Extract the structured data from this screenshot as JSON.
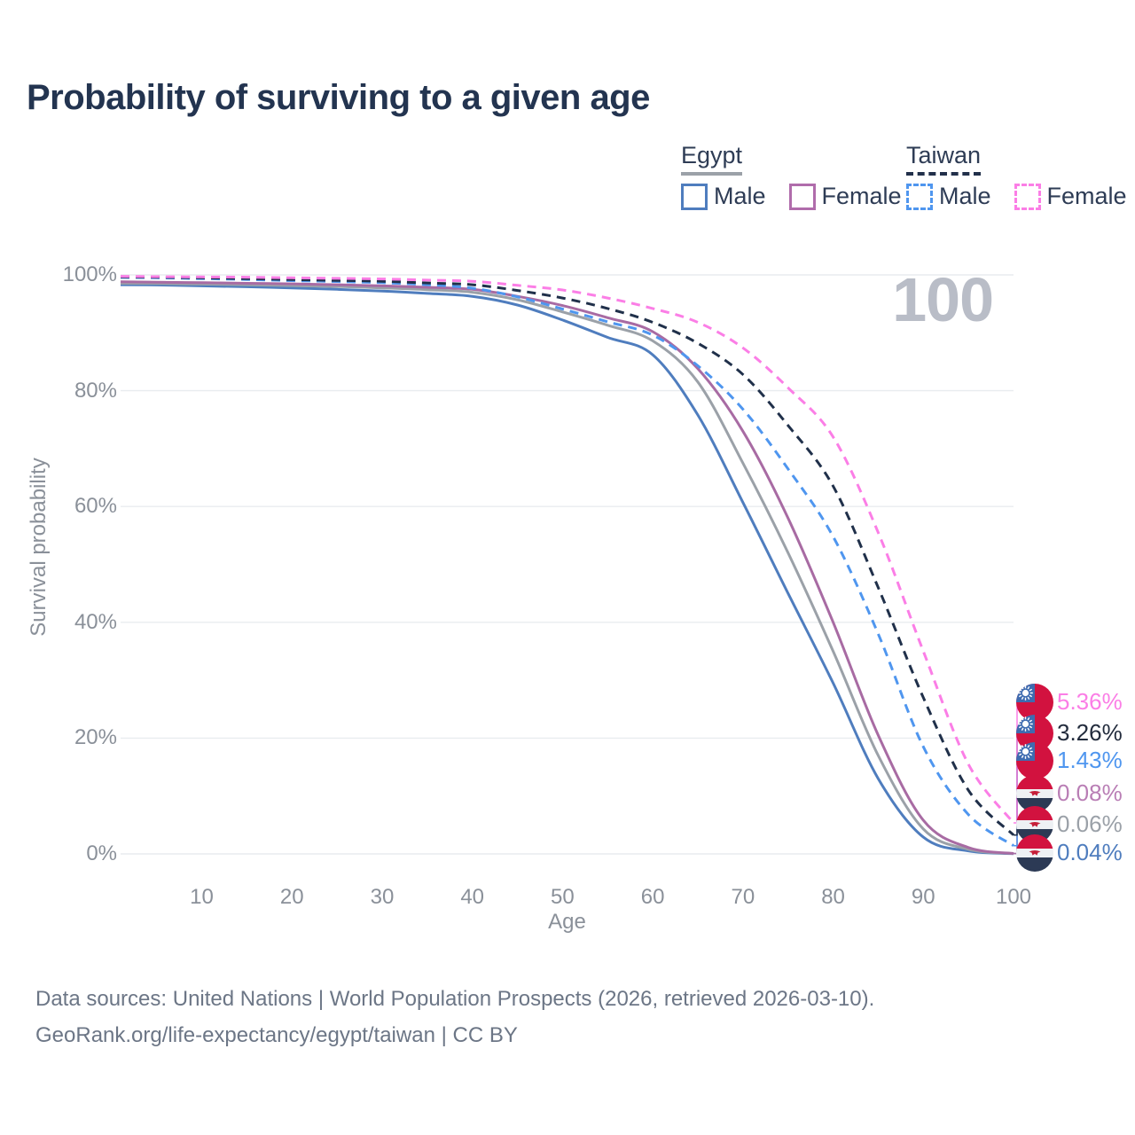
{
  "title": "Probability of surviving to a given age",
  "watermark_age": "100",
  "theme": {
    "background": "#ffffff",
    "title_color": "#233450",
    "grid_color": "#e9ecef",
    "axis_text_color": "#8a9099",
    "legend_text_color": "#2e3c55",
    "footer_text_color": "#6c7686",
    "watermark_color": "#b9bdc7"
  },
  "legend": {
    "groups": [
      {
        "id": "egypt",
        "title": "Egypt",
        "underline_style": "solid",
        "underline_color": "#9ba1a8",
        "items": [
          {
            "label": "Male",
            "color": "#4f7dbe",
            "dashed": false
          },
          {
            "label": "Female",
            "color": "#b06cab",
            "dashed": false
          }
        ]
      },
      {
        "id": "taiwan",
        "title": "Taiwan",
        "underline_style": "dashed",
        "underline_color": "#22304a",
        "items": [
          {
            "label": "Male",
            "color": "#4f96ef",
            "dashed": true
          },
          {
            "label": "Female",
            "color": "#fb7ee6",
            "dashed": true
          }
        ]
      }
    ]
  },
  "footer": {
    "line1": "Data sources: United Nations | World Population Prospects (2026, retrieved 2026-03-10).",
    "line2": "GeoRank.org/life-expectancy/egypt/taiwan | CC BY"
  },
  "chart_data": {
    "type": "line",
    "title": "Probability of surviving to a given age",
    "xlabel": "Age",
    "ylabel": "Survival probability",
    "x_range": [
      1,
      100
    ],
    "y_range": [
      0,
      100
    ],
    "grid": "horizontal",
    "x_ticks": [
      {
        "value": 10,
        "label": "10"
      },
      {
        "value": 20,
        "label": "20"
      },
      {
        "value": 30,
        "label": "30"
      },
      {
        "value": 40,
        "label": "40"
      },
      {
        "value": 50,
        "label": "50"
      },
      {
        "value": 60,
        "label": "60"
      },
      {
        "value": 70,
        "label": "70"
      },
      {
        "value": 80,
        "label": "80"
      },
      {
        "value": 90,
        "label": "90"
      },
      {
        "value": 100,
        "label": "100"
      }
    ],
    "y_ticks": [
      {
        "value": 0,
        "label": "0%"
      },
      {
        "value": 20,
        "label": "20%"
      },
      {
        "value": 40,
        "label": "40%"
      },
      {
        "value": 60,
        "label": "60%"
      },
      {
        "value": 80,
        "label": "80%"
      },
      {
        "value": 100,
        "label": "100%"
      }
    ],
    "ages": [
      1,
      5,
      10,
      15,
      20,
      25,
      30,
      35,
      40,
      45,
      50,
      55,
      60,
      65,
      70,
      75,
      80,
      85,
      90,
      95,
      100
    ],
    "series": [
      {
        "id": "egypt-male",
        "country": "Egypt",
        "group": "Male",
        "color": "#4f7dbe",
        "dashed": false,
        "flag": "egypt",
        "end_label": "0.04%",
        "label_color": "#4f7dbe",
        "label_row": 5,
        "values": [
          98.3,
          98.25,
          98.1,
          97.95,
          97.75,
          97.5,
          97.2,
          96.8,
          96.3,
          94.8,
          92.2,
          89.2,
          86.2,
          75.8,
          60.7,
          45.0,
          29.5,
          13.0,
          2.9,
          0.5,
          0.04
        ]
      },
      {
        "id": "egypt-all",
        "country": "Egypt",
        "group": "Both sexes",
        "color": "#9ba1a8",
        "dashed": false,
        "flag": "egypt",
        "end_label": "0.06%",
        "label_color": "#9ba1a8",
        "label_row": 4,
        "values": [
          98.55,
          98.5,
          98.4,
          98.3,
          98.15,
          98.0,
          97.75,
          97.45,
          97.0,
          95.7,
          93.6,
          91.3,
          88.6,
          81.5,
          67.5,
          52.0,
          35.0,
          17.0,
          4.3,
          0.8,
          0.06
        ]
      },
      {
        "id": "egypt-female",
        "country": "Egypt",
        "group": "Female",
        "color": "#a86ba3",
        "dashed": false,
        "flag": "egypt",
        "end_label": "0.08%",
        "label_color": "#b97eb5",
        "label_row": 3,
        "values": [
          98.8,
          98.75,
          98.65,
          98.55,
          98.45,
          98.3,
          98.1,
          97.85,
          97.5,
          96.3,
          94.7,
          92.6,
          90.2,
          83.8,
          73.0,
          58.0,
          40.0,
          20.5,
          5.8,
          1.1,
          0.08
        ]
      },
      {
        "id": "taiwan-male",
        "country": "Taiwan",
        "group": "Male",
        "color": "#4f96ef",
        "dashed": true,
        "flag": "taiwan",
        "end_label": "1.43%",
        "label_color": "#4f96ef",
        "label_row": 2,
        "values": [
          99.55,
          99.5,
          99.35,
          99.2,
          99.0,
          98.85,
          98.65,
          98.3,
          97.7,
          96.2,
          94.1,
          91.9,
          89.6,
          84.3,
          76.8,
          66.5,
          54.8,
          38.0,
          18.5,
          6.8,
          1.43
        ]
      },
      {
        "id": "taiwan-all",
        "country": "Taiwan",
        "group": "Both sexes",
        "color": "#20304a",
        "dashed": true,
        "flag": "taiwan",
        "end_label": "3.26%",
        "label_color": "#232c3d",
        "label_row": 1,
        "values": [
          99.65,
          99.6,
          99.5,
          99.35,
          99.2,
          99.05,
          98.9,
          98.6,
          98.3,
          97.3,
          96.0,
          94.2,
          91.8,
          88.2,
          82.8,
          74.0,
          63.5,
          46.0,
          27.0,
          11.0,
          3.26
        ]
      },
      {
        "id": "taiwan-female",
        "country": "Taiwan",
        "group": "Female",
        "color": "#fb7ee6",
        "dashed": true,
        "flag": "taiwan",
        "end_label": "5.36%",
        "label_color": "#fb7ee6",
        "label_row": 0,
        "values": [
          99.75,
          99.7,
          99.65,
          99.6,
          99.5,
          99.4,
          99.3,
          99.1,
          98.9,
          98.2,
          97.4,
          96.0,
          94.2,
          91.8,
          87.4,
          80.5,
          72.0,
          55.5,
          35.0,
          15.5,
          5.36
        ]
      }
    ]
  }
}
